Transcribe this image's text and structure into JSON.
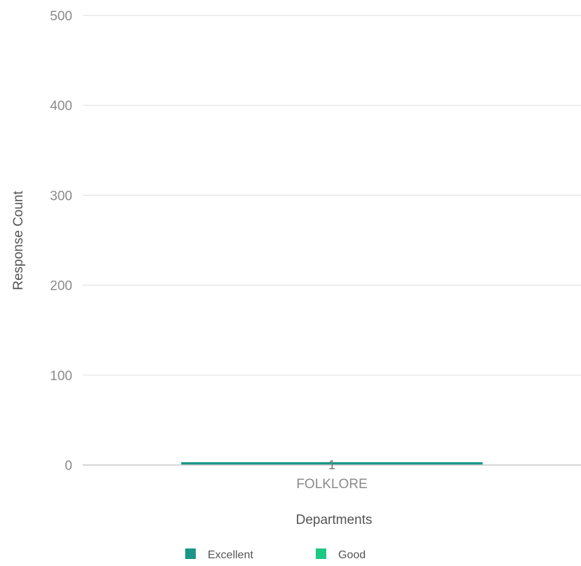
{
  "chart_data": {
    "type": "bar",
    "stacked": true,
    "categories": [
      "FOLKLORE"
    ],
    "series": [
      {
        "name": "Excellent",
        "values": [
          1
        ],
        "color": "#1a9688"
      },
      {
        "name": "Good",
        "values": [
          0
        ],
        "color": "#1ec784"
      }
    ],
    "data_labels": [
      "1"
    ],
    "xlabel": "Departments",
    "ylabel": "Response Count",
    "ylim": [
      0,
      500
    ],
    "yticks": [
      0,
      100,
      200,
      300,
      400,
      500
    ],
    "grid": true,
    "legend_position": "bottom",
    "gridline_color": "#e3e3e3",
    "baseline_color": "#c8c8c8"
  }
}
